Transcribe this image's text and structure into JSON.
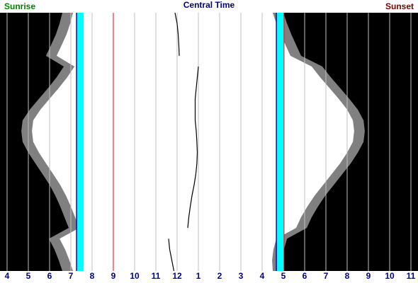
{
  "chart_data": {
    "type": "daylight",
    "title": "Central Time",
    "title_color": "#000080",
    "categories": [
      null,
      null,
      null,
      null,
      null,
      null,
      null,
      null,
      null,
      null,
      null,
      null,
      null,
      null,
      null,
      null,
      null,
      null,
      null,
      null,
      null,
      null,
      null,
      null,
      null
    ],
    "series": [
      {
        "name": "Sunrise",
        "color": "#008000",
        "values": [
          7.1,
          6.97,
          6.8,
          6.57,
          6.33,
          7.17,
          6.83,
          6.43,
          6.0,
          5.57,
          5.23,
          5.17,
          5.23,
          5.5,
          5.83,
          6.17,
          6.5,
          6.77,
          7.0,
          7.2,
          7.4,
          6.47,
          6.73,
          6.93,
          7.1
        ]
      },
      {
        "name": "Sunset",
        "color": "#800000",
        "values": [
          16.5,
          16.67,
          16.87,
          17.1,
          17.33,
          18.33,
          18.73,
          19.17,
          19.6,
          20.0,
          20.27,
          20.33,
          20.27,
          20.0,
          19.67,
          19.27,
          18.87,
          18.47,
          18.13,
          17.83,
          17.6,
          16.67,
          16.53,
          16.47,
          16.5
        ]
      },
      {
        "color": "#808080",
        "values": [
          6.6,
          6.47,
          6.3,
          6.07,
          5.83,
          6.67,
          6.33,
          5.93,
          5.5,
          5.07,
          4.73,
          4.67,
          4.73,
          5.0,
          5.33,
          5.67,
          6.0,
          6.27,
          6.5,
          6.7,
          6.9,
          5.97,
          6.23,
          6.43,
          6.6
        ]
      },
      {
        "color": "#808080",
        "values": [
          17.0,
          17.17,
          17.37,
          17.6,
          17.83,
          18.83,
          19.23,
          19.67,
          20.1,
          20.5,
          20.77,
          20.83,
          20.77,
          20.5,
          20.17,
          19.77,
          19.37,
          18.97,
          18.63,
          18.33,
          18.1,
          17.17,
          17.03,
          16.97,
          17.0
        ]
      },
      {
        "color": "#000000",
        "values": [
          11.9,
          12.0,
          12.05,
          12.08,
          12.1,
          13.0,
          12.95,
          12.9,
          12.85,
          12.85,
          12.85,
          12.9,
          12.93,
          12.95,
          12.93,
          12.88,
          12.8,
          12.7,
          12.62,
          12.55,
          12.5,
          11.6,
          11.65,
          11.75,
          11.85
        ]
      }
    ],
    "night_color": "#000000",
    "day_color": "#ffffff",
    "bands": [
      {
        "from": 7.27,
        "to": 7.6,
        "color": "#00ffff",
        "edge_color": "#0000c0"
      },
      {
        "from": 16.67,
        "to": 17.0,
        "color": "#00ffff",
        "edge_color": "#0000c0"
      }
    ],
    "markers": [
      {
        "value": 9,
        "color": "#ff0000"
      },
      {
        "value": 17.03,
        "color": "#ff0000"
      }
    ],
    "xlim": [
      3.667,
      23.333
    ],
    "xticks": [
      4,
      5,
      6,
      7,
      8,
      9,
      10,
      11,
      12,
      {
        "value": 13,
        "label": "1"
      },
      {
        "value": 14,
        "label": "2"
      },
      {
        "value": 15,
        "label": "3"
      },
      {
        "value": 16,
        "label": "4"
      },
      {
        "value": 17,
        "label": "5"
      },
      {
        "value": 18,
        "label": "6"
      },
      {
        "value": 19,
        "label": "7"
      },
      {
        "value": 20,
        "label": "8"
      },
      {
        "value": 21,
        "label": "9"
      },
      {
        "value": 22,
        "label": "10"
      },
      {
        "value": 23,
        "label": "11"
      }
    ],
    "tick_color": "#000080",
    "grid": true,
    "grid_color": "#c0c0c0"
  }
}
